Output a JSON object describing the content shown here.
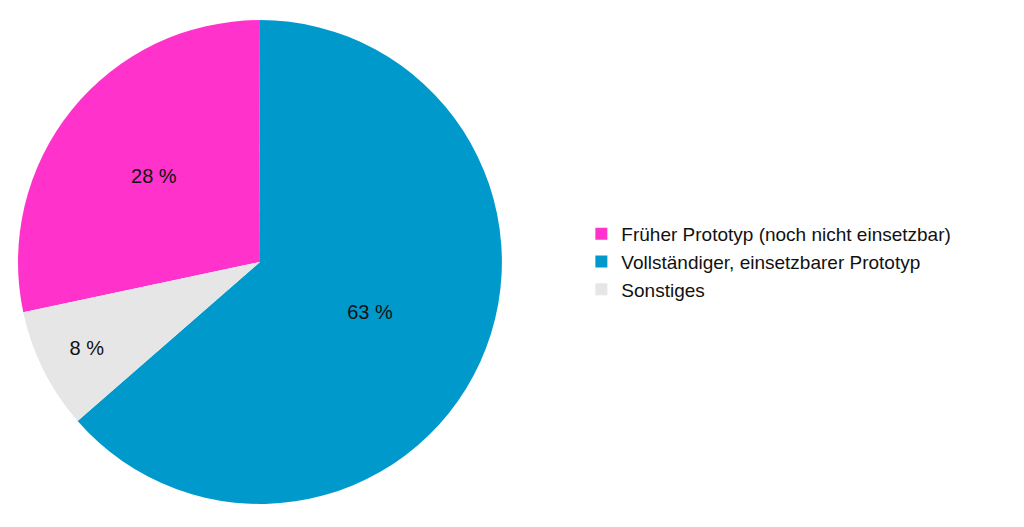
{
  "chart_data": {
    "type": "pie",
    "categories": [
      "Früher Prototyp (noch nicht einsetzbar)",
      "Vollständiger, einsetzbarer Prototyp",
      "Sonstiges"
    ],
    "values": [
      28,
      63,
      8
    ],
    "value_labels": [
      "28 %",
      "63 %",
      "8 %"
    ],
    "colors": [
      "#ff33cc",
      "#0099cc",
      "#e6e6e6"
    ],
    "data_labels": true,
    "legend": "right"
  }
}
